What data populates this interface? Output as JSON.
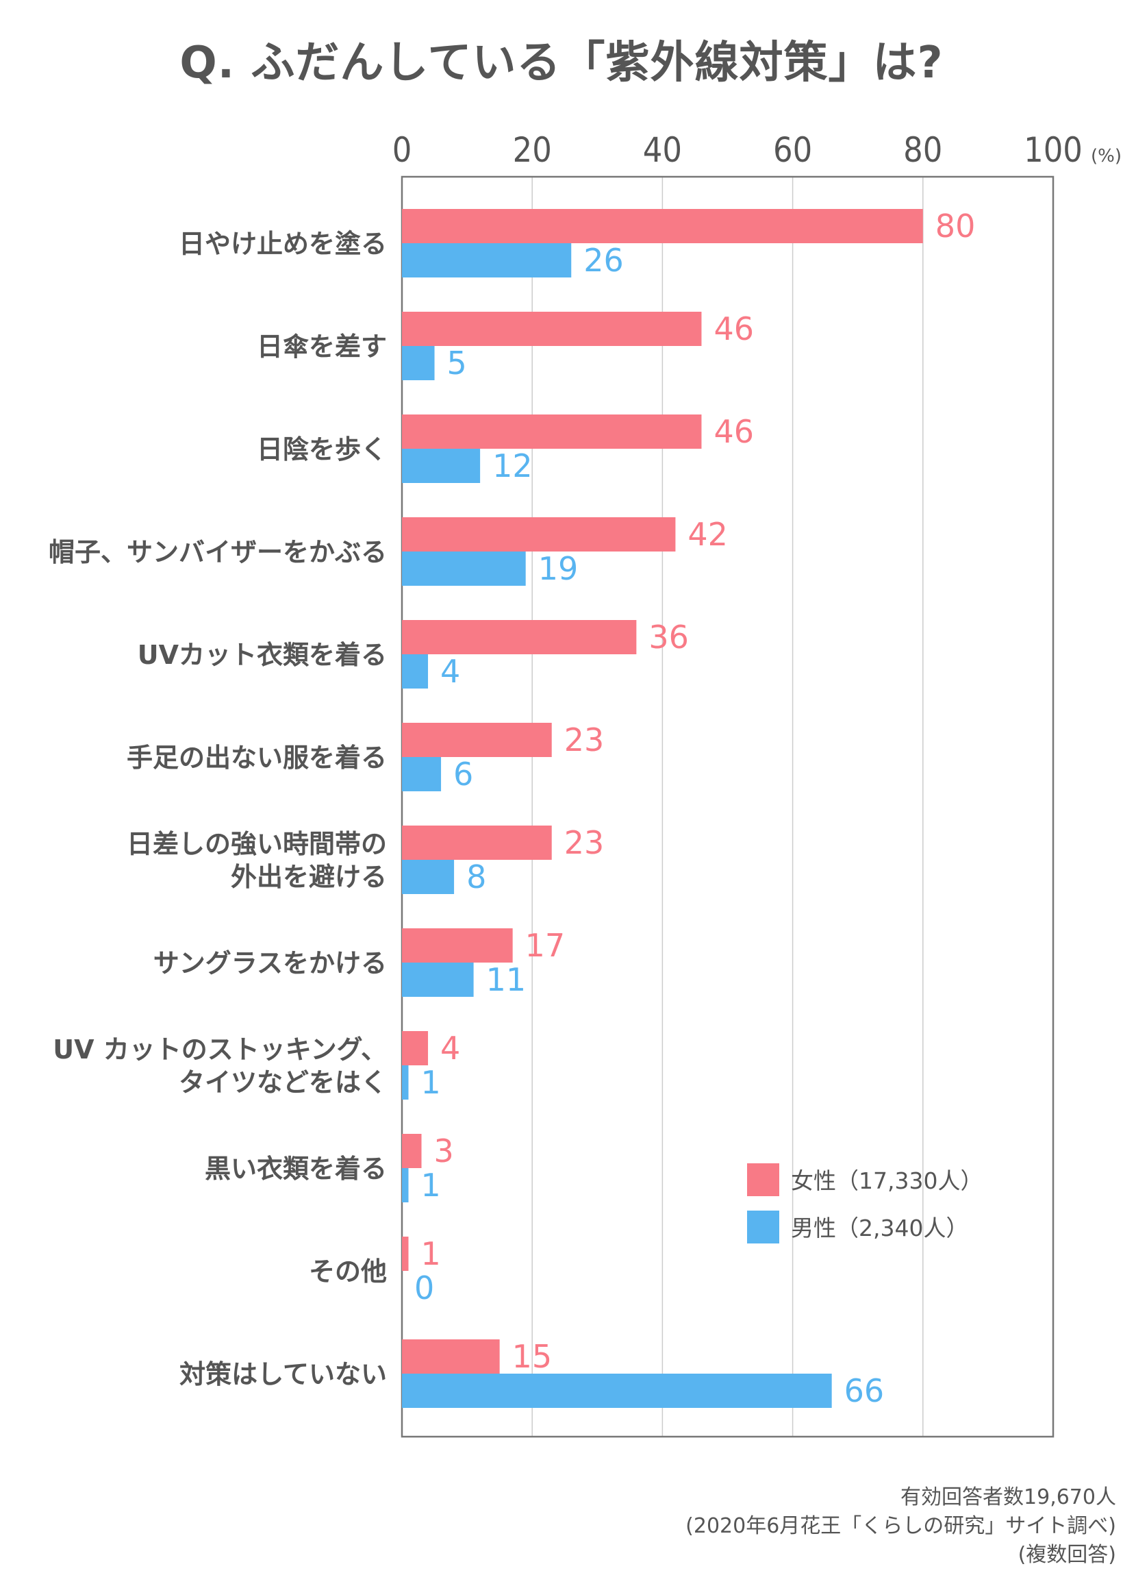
{
  "chart_data": {
    "type": "bar",
    "orientation": "horizontal",
    "title": "Q. ふだんしている「紫外線対策」は?",
    "xlim": [
      0,
      100
    ],
    "xticks": [
      "0",
      "20",
      "40",
      "60",
      "80",
      "100"
    ],
    "xunit": "(%)",
    "grid": true,
    "legend_position": "bottom-right",
    "categories": [
      [
        "日やけ止めを塗る"
      ],
      [
        "日傘を差す"
      ],
      [
        "日陰を歩く"
      ],
      [
        "帽子、サンバイザーをかぶる"
      ],
      [
        "UVカット衣類を着る"
      ],
      [
        "手足の出ない服を着る"
      ],
      [
        "日差しの強い時間帯の",
        "外出を避ける"
      ],
      [
        "サングラスをかける"
      ],
      [
        "UV カットのストッキング、",
        "タイツなどをはく"
      ],
      [
        "黒い衣類を着る"
      ],
      [
        "その他"
      ],
      [
        "対策はしていない"
      ]
    ],
    "series": [
      {
        "name": "女性（17,330人）",
        "color": "#f87a86",
        "values": [
          80,
          46,
          46,
          42,
          36,
          23,
          23,
          17,
          4,
          3,
          1,
          15
        ]
      },
      {
        "name": "男性（2,340人）",
        "color": "#58b4f0",
        "values": [
          26,
          5,
          12,
          19,
          4,
          6,
          8,
          11,
          1,
          1,
          0,
          66
        ]
      }
    ]
  },
  "footer": {
    "respondents": "有効回答者数19,670人",
    "source": "(2020年6月花王「くらしの研究」サイト調べ)",
    "note": "(複数回答)"
  }
}
